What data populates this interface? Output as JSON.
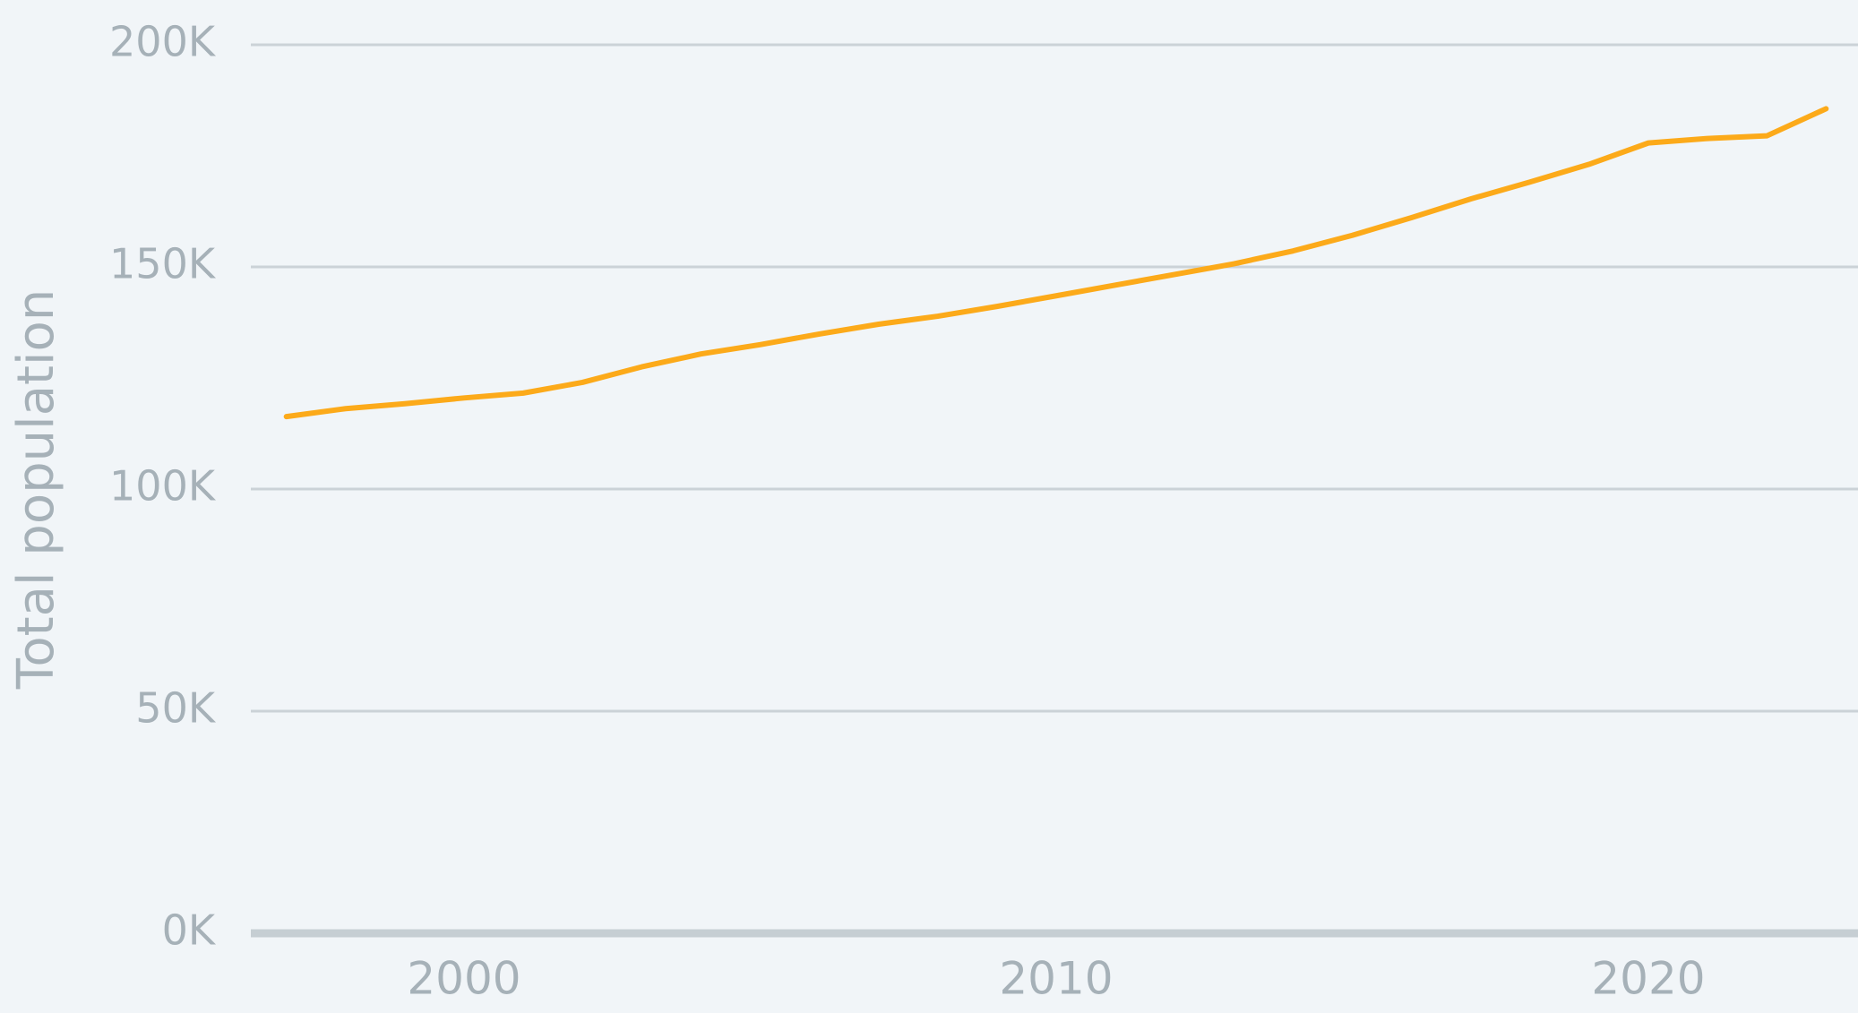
{
  "chart_data": {
    "type": "line",
    "y_label": "Total population",
    "x": [
      1997,
      1998,
      1999,
      2000,
      2001,
      2002,
      2003,
      2004,
      2005,
      2006,
      2007,
      2008,
      2009,
      2010,
      2011,
      2012,
      2013,
      2014,
      2015,
      2016,
      2017,
      2018,
      2019,
      2020,
      2021,
      2022,
      2023
    ],
    "series": [
      {
        "name": "Total population",
        "color": "#fcaa1a",
        "values": [
          116.3,
          118.1,
          119.2,
          120.5,
          121.6,
          124,
          127.5,
          130.4,
          132.5,
          134.9,
          137.1,
          138.9,
          141.1,
          143.5,
          145.9,
          148.3,
          150.7,
          153.6,
          157.1,
          161.1,
          165.3,
          169.1,
          173.1,
          177.9,
          178.9,
          179.5,
          185.6
        ]
      }
    ],
    "xlim": [
      1996.4,
      2023.54
    ],
    "xticks": [
      2000,
      2010,
      2020
    ],
    "ylim": [
      0,
      200
    ],
    "yticks": [
      {
        "value": 0,
        "label": "0K"
      },
      {
        "value": 50,
        "label": "50K"
      },
      {
        "value": 100,
        "label": "100K"
      },
      {
        "value": 150,
        "label": "150K"
      },
      {
        "value": 200,
        "label": "200K"
      }
    ],
    "grid": true
  }
}
